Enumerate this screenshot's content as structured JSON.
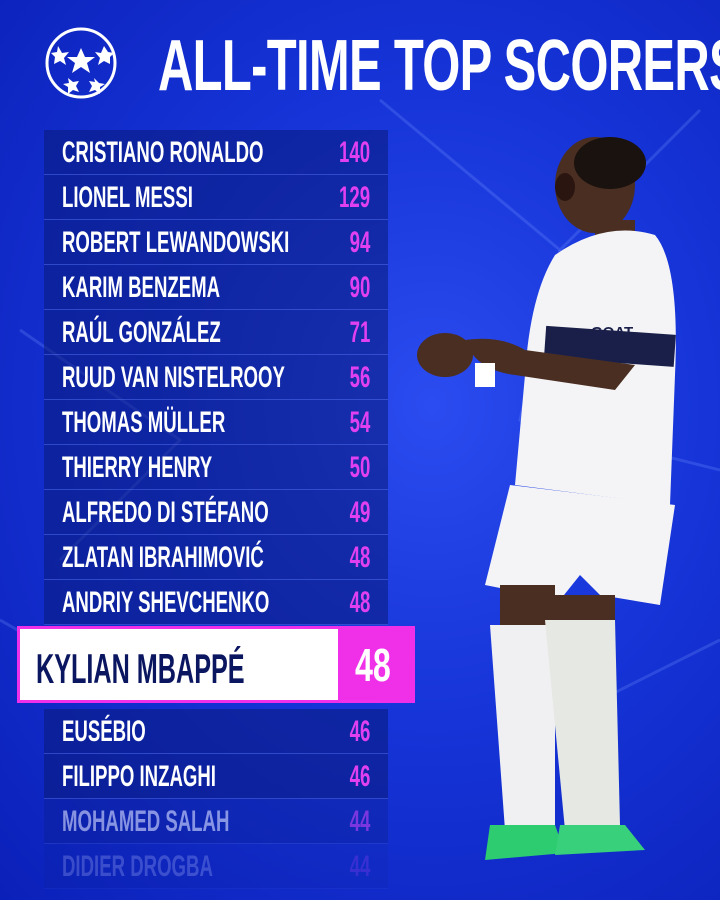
{
  "title": "ALL-TIME TOP SCORERS",
  "logo": "uefa-champions-league-starball",
  "colors": {
    "background": "#1634d8",
    "accent": "#f030e8",
    "highlight_text": "#0b1660"
  },
  "scorers": [
    {
      "name": "CRISTIANO RONALDO",
      "goals": "140"
    },
    {
      "name": "LIONEL MESSI",
      "goals": "129"
    },
    {
      "name": "ROBERT LEWANDOWSKI",
      "goals": "94"
    },
    {
      "name": "KARIM BENZEMA",
      "goals": "90"
    },
    {
      "name": "RAÚL GONZÁLEZ",
      "goals": "71"
    },
    {
      "name": "RUUD VAN NISTELROOY",
      "goals": "56"
    },
    {
      "name": "THOMAS MÜLLER",
      "goals": "54"
    },
    {
      "name": "THIERRY HENRY",
      "goals": "50"
    },
    {
      "name": "ALFREDO DI STÉFANO",
      "goals": "49"
    },
    {
      "name": "ZLATAN IBRAHIMOVIĆ",
      "goals": "48"
    },
    {
      "name": "ANDRIY SHEVCHENKO",
      "goals": "48"
    }
  ],
  "highlight": {
    "name": "KYLIAN MBAPPÉ",
    "goals": "48"
  },
  "lower": [
    {
      "name": "EUSÉBIO",
      "goals": "46"
    },
    {
      "name": "FILIPPO INZAGHI",
      "goals": "46"
    },
    {
      "name": "MOHAMED SALAH",
      "goals": "44"
    },
    {
      "name": "DIDIER DROGBA",
      "goals": "44"
    }
  ],
  "player_shirt": {
    "sponsor": "GOAT"
  }
}
